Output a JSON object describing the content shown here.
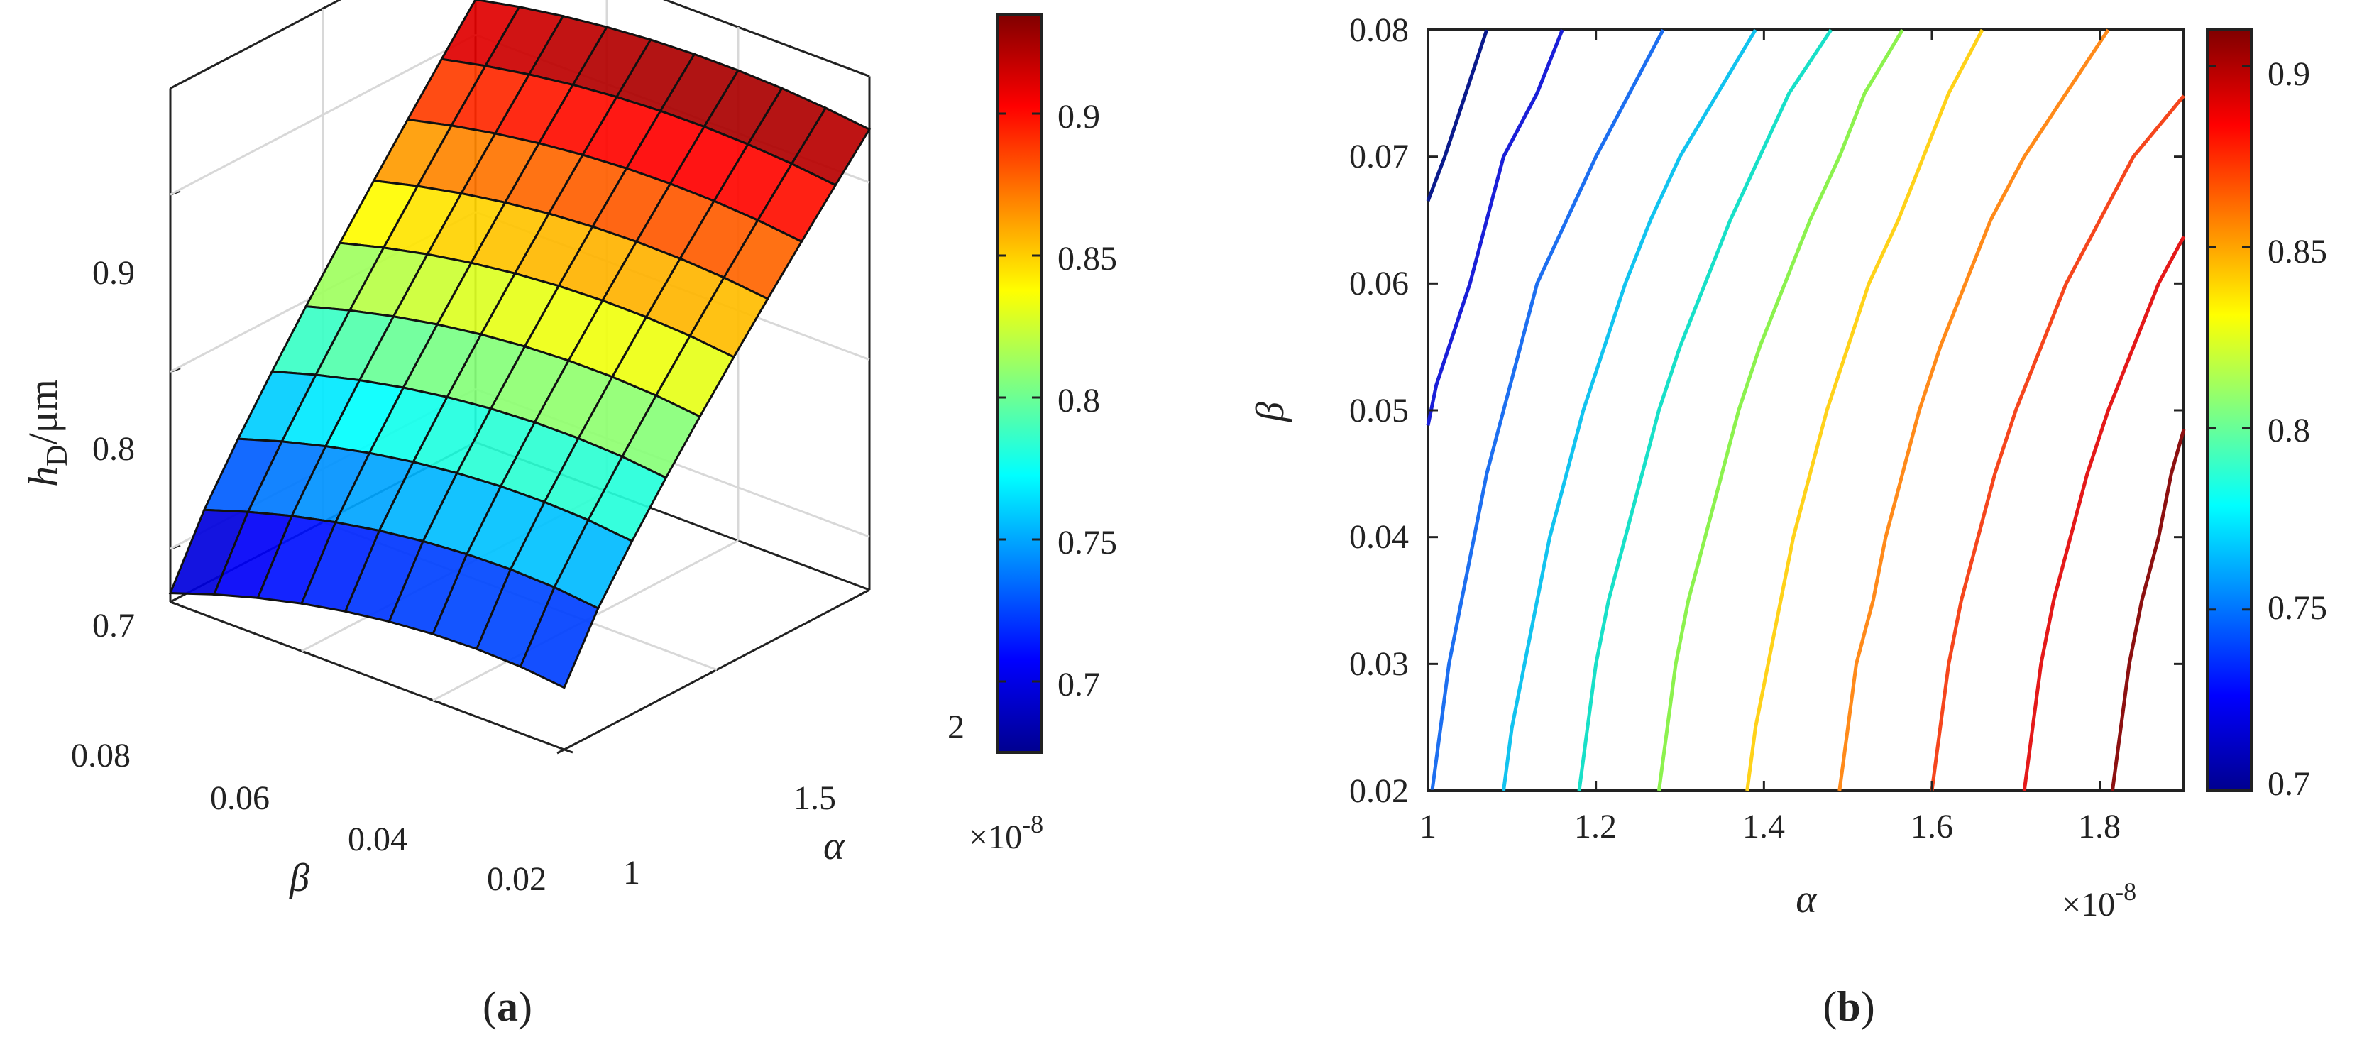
{
  "figure": {
    "panel_a_label": [
      "(",
      "a",
      ")"
    ],
    "panel_b_label": [
      "(",
      "b",
      ")"
    ]
  },
  "colormap": [
    "#00008f",
    "#0000ff",
    "#0080ff",
    "#00ffff",
    "#80ff80",
    "#ffff00",
    "#ff8000",
    "#ff0000",
    "#800000"
  ],
  "chart_data": [
    {
      "type": "surface",
      "panel": "a",
      "xlabel": "α",
      "ylabel": "β",
      "zlabel": "h_D/μm",
      "zlabel_parts": {
        "main": "h",
        "sub": "D",
        "rest": "/μm"
      },
      "x_ticks": [
        "1",
        "1.5",
        "2"
      ],
      "x_exponent_text": "×10",
      "x_exponent_power": "-8",
      "y_ticks": [
        "0.08",
        "0.06",
        "0.04",
        "0.02"
      ],
      "z_ticks": [
        "0.7",
        "0.8",
        "0.9"
      ],
      "alpha_range": [
        1e-08,
        2e-08
      ],
      "beta_range": [
        0.02,
        0.08
      ],
      "z_range": [
        0.67,
        0.93
      ],
      "grid": true,
      "corner_values": {
        "alpha_1e-8_beta_0.08": 0.675,
        "alpha_2e-8_beta_0.08": 0.93,
        "alpha_1e-8_beta_0.02": 0.705,
        "alpha_2e-8_beta_0.02": 0.93
      },
      "colorbar": {
        "ticks": [
          "0.7",
          "0.75",
          "0.8",
          "0.85",
          "0.9"
        ],
        "range": [
          0.675,
          0.935
        ]
      }
    },
    {
      "type": "contour",
      "panel": "b",
      "xlabel": "α",
      "ylabel": "β",
      "x_ticks": [
        "1",
        "1.2",
        "1.4",
        "1.6",
        "1.8"
      ],
      "x_exponent_text": "×10",
      "x_exponent_power": "-8",
      "y_ticks": [
        "0.02",
        "0.03",
        "0.04",
        "0.05",
        "0.06",
        "0.07",
        "0.08"
      ],
      "xlim": [
        1.0,
        1.9
      ],
      "ylim": [
        0.02,
        0.08
      ],
      "grid": false,
      "levels": [
        {
          "level": 0.7,
          "color": "#0a1a8c",
          "points": [
            [
              1.0,
              0.0665
            ],
            [
              1.02,
              0.07
            ],
            [
              1.045,
              0.075
            ],
            [
              1.07,
              0.08
            ]
          ]
        },
        {
          "level": 0.72,
          "color": "#1a1fd8",
          "points": [
            [
              1.0,
              0.0488
            ],
            [
              1.01,
              0.052
            ],
            [
              1.03,
              0.056
            ],
            [
              1.05,
              0.06
            ],
            [
              1.07,
              0.065
            ],
            [
              1.09,
              0.07
            ],
            [
              1.13,
              0.075
            ],
            [
              1.16,
              0.08
            ]
          ]
        },
        {
          "level": 0.74,
          "color": "#1d6ff0",
          "points": [
            [
              1.005,
              0.02
            ],
            [
              1.015,
              0.025
            ],
            [
              1.025,
              0.03
            ],
            [
              1.04,
              0.035
            ],
            [
              1.055,
              0.04
            ],
            [
              1.07,
              0.045
            ],
            [
              1.09,
              0.05
            ],
            [
              1.11,
              0.055
            ],
            [
              1.13,
              0.06
            ],
            [
              1.165,
              0.065
            ],
            [
              1.2,
              0.07
            ],
            [
              1.24,
              0.075
            ],
            [
              1.28,
              0.08
            ]
          ]
        },
        {
          "level": 0.76,
          "color": "#12c3ef",
          "points": [
            [
              1.09,
              0.02
            ],
            [
              1.1,
              0.025
            ],
            [
              1.115,
              0.03
            ],
            [
              1.13,
              0.035
            ],
            [
              1.145,
              0.04
            ],
            [
              1.165,
              0.045
            ],
            [
              1.185,
              0.05
            ],
            [
              1.21,
              0.055
            ],
            [
              1.235,
              0.06
            ],
            [
              1.265,
              0.065
            ],
            [
              1.3,
              0.07
            ],
            [
              1.345,
              0.075
            ],
            [
              1.39,
              0.08
            ]
          ]
        },
        {
          "level": 0.78,
          "color": "#18e0c8",
          "points": [
            [
              1.18,
              0.02
            ],
            [
              1.19,
              0.025
            ],
            [
              1.2,
              0.03
            ],
            [
              1.215,
              0.035
            ],
            [
              1.235,
              0.04
            ],
            [
              1.255,
              0.045
            ],
            [
              1.275,
              0.05
            ],
            [
              1.3,
              0.055
            ],
            [
              1.33,
              0.06
            ],
            [
              1.36,
              0.065
            ],
            [
              1.395,
              0.07
            ],
            [
              1.43,
              0.075
            ],
            [
              1.48,
              0.08
            ]
          ]
        },
        {
          "level": 0.8,
          "color": "#8cf24e",
          "points": [
            [
              1.275,
              0.02
            ],
            [
              1.285,
              0.025
            ],
            [
              1.295,
              0.03
            ],
            [
              1.31,
              0.035
            ],
            [
              1.33,
              0.04
            ],
            [
              1.35,
              0.045
            ],
            [
              1.37,
              0.05
            ],
            [
              1.395,
              0.055
            ],
            [
              1.425,
              0.06
            ],
            [
              1.455,
              0.065
            ],
            [
              1.49,
              0.07
            ],
            [
              1.52,
              0.075
            ],
            [
              1.565,
              0.08
            ]
          ]
        },
        {
          "level": 0.82,
          "color": "#ffd21a",
          "points": [
            [
              1.38,
              0.02
            ],
            [
              1.39,
              0.025
            ],
            [
              1.405,
              0.03
            ],
            [
              1.42,
              0.035
            ],
            [
              1.435,
              0.04
            ],
            [
              1.455,
              0.045
            ],
            [
              1.475,
              0.05
            ],
            [
              1.5,
              0.055
            ],
            [
              1.525,
              0.06
            ],
            [
              1.56,
              0.065
            ],
            [
              1.59,
              0.07
            ],
            [
              1.62,
              0.075
            ],
            [
              1.66,
              0.08
            ]
          ]
        },
        {
          "level": 0.84,
          "color": "#ff8a1a",
          "points": [
            [
              1.49,
              0.02
            ],
            [
              1.5,
              0.025
            ],
            [
              1.51,
              0.03
            ],
            [
              1.53,
              0.035
            ],
            [
              1.545,
              0.04
            ],
            [
              1.565,
              0.045
            ],
            [
              1.585,
              0.05
            ],
            [
              1.61,
              0.055
            ],
            [
              1.64,
              0.06
            ],
            [
              1.67,
              0.065
            ],
            [
              1.71,
              0.07
            ],
            [
              1.76,
              0.075
            ],
            [
              1.81,
              0.08
            ]
          ]
        },
        {
          "level": 0.86,
          "color": "#f5461d",
          "points": [
            [
              1.6,
              0.02
            ],
            [
              1.61,
              0.025
            ],
            [
              1.62,
              0.03
            ],
            [
              1.635,
              0.035
            ],
            [
              1.655,
              0.04
            ],
            [
              1.675,
              0.045
            ],
            [
              1.7,
              0.05
            ],
            [
              1.73,
              0.055
            ],
            [
              1.76,
              0.06
            ],
            [
              1.8,
              0.065
            ],
            [
              1.84,
              0.07
            ],
            [
              1.9,
              0.0748
            ]
          ]
        },
        {
          "level": 0.88,
          "color": "#e41919",
          "points": [
            [
              1.71,
              0.02
            ],
            [
              1.72,
              0.025
            ],
            [
              1.73,
              0.03
            ],
            [
              1.745,
              0.035
            ],
            [
              1.765,
              0.04
            ],
            [
              1.785,
              0.045
            ],
            [
              1.81,
              0.05
            ],
            [
              1.84,
              0.055
            ],
            [
              1.87,
              0.06
            ],
            [
              1.9,
              0.0637
            ]
          ]
        },
        {
          "level": 0.9,
          "color": "#8c1010",
          "points": [
            [
              1.815,
              0.02
            ],
            [
              1.825,
              0.025
            ],
            [
              1.835,
              0.03
            ],
            [
              1.85,
              0.035
            ],
            [
              1.87,
              0.04
            ],
            [
              1.885,
              0.045
            ],
            [
              1.9,
              0.0485
            ]
          ]
        }
      ],
      "colorbar": {
        "ticks": [
          "0.7",
          "0.75",
          "0.8",
          "0.85",
          "0.9"
        ],
        "range": [
          0.7,
          0.91
        ]
      }
    }
  ]
}
